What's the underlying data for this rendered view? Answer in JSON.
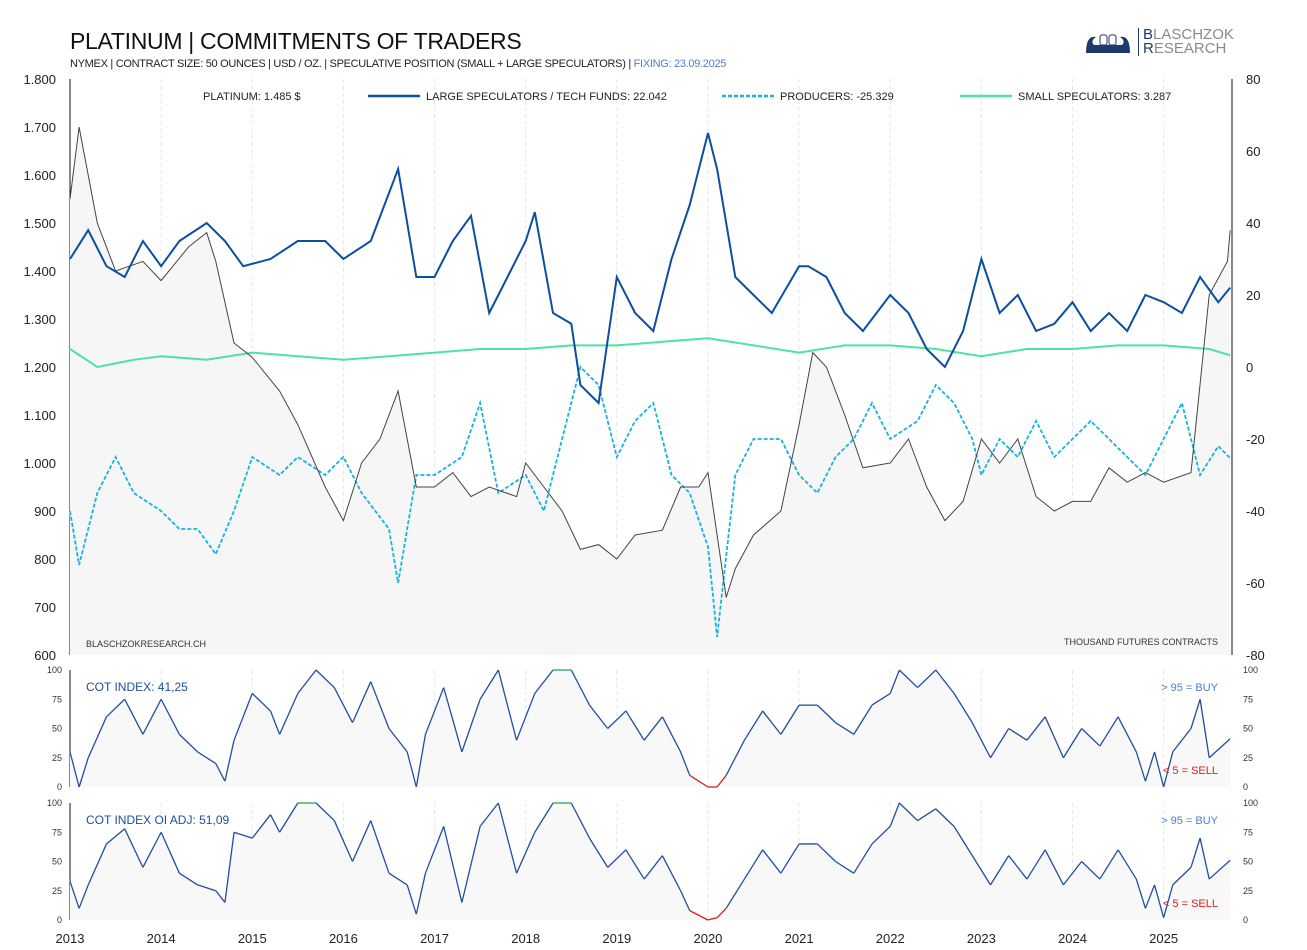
{
  "header": {
    "title": "PLATINUM | COMMITMENTS OF TRADERS",
    "subtitle": "NYMEX | CONTRACT SIZE: 50 OUNCES | USD / OZ. | SPECULATIVE POSITION (SMALL + LARGE SPECULATORS) |",
    "fixing": "FIXING: 23.09.2025",
    "logo": "BLASCHZOK RESEARCH",
    "logo_line1": "LASCHZOK",
    "logo_line2": "ESEARCH",
    "logo_initial1": "B",
    "logo_initial2": "R"
  },
  "colors": {
    "price": "#444444",
    "large": "#0b4ea2",
    "producers": "#16b3e0",
    "small": "#4de3a0",
    "buy": "#1aa64a",
    "sell": "#e01b1b",
    "cot": "#1f4fa0"
  },
  "chart_data": [
    {
      "type": "line",
      "title": "PLATINUM | COMMITMENTS OF TRADERS",
      "left_axis": {
        "label": "USD / OZ.",
        "ylim": [
          600,
          1800
        ],
        "ticks": [
          "600",
          "700",
          "800",
          "900",
          "1.000",
          "1.100",
          "1.200",
          "1.300",
          "1.400",
          "1.500",
          "1.600",
          "1.700",
          "1.800"
        ]
      },
      "right_axis": {
        "label": "THOUSAND  FUTURES CONTRACTS",
        "ylim": [
          -80,
          80
        ],
        "ticks": [
          "-80",
          "-60",
          "-40",
          "-20",
          "0",
          "20",
          "40",
          "60",
          "80"
        ]
      },
      "x_ticks": [
        "2013",
        "2014",
        "2015",
        "2016",
        "2017",
        "2018",
        "2019",
        "2020",
        "2021",
        "2022",
        "2023",
        "2024",
        "2025"
      ],
      "xlim": [
        2013,
        2025.75
      ],
      "legend": [
        "PLATINUM: 1.485 $",
        "LARGE SPECULATORS / TECH FUNDS: 22.042",
        "PRODUCERS: -25.329",
        "SMALL SPECULATORS: 3.287"
      ],
      "legend_position": "top",
      "watermark": "BLASCHZOKRESEARCH.CH",
      "units_note": "THOUSAND  FUTURES CONTRACTS",
      "series": [
        {
          "name": "PLATINUM",
          "axis": "left",
          "x": [
            2013.0,
            2013.1,
            2013.3,
            2013.5,
            2013.8,
            2014.0,
            2014.3,
            2014.5,
            2014.6,
            2014.8,
            2015.0,
            2015.3,
            2015.5,
            2015.8,
            2016.0,
            2016.2,
            2016.4,
            2016.6,
            2016.8,
            2017.0,
            2017.2,
            2017.4,
            2017.6,
            2017.9,
            2018.0,
            2018.2,
            2018.4,
            2018.6,
            2018.8,
            2019.0,
            2019.2,
            2019.5,
            2019.7,
            2019.9,
            2020.0,
            2020.2,
            2020.3,
            2020.5,
            2020.8,
            2021.0,
            2021.15,
            2021.3,
            2021.5,
            2021.7,
            2022.0,
            2022.2,
            2022.4,
            2022.6,
            2022.8,
            2023.0,
            2023.2,
            2023.4,
            2023.6,
            2023.8,
            2024.0,
            2024.2,
            2024.4,
            2024.6,
            2024.8,
            2025.0,
            2025.3,
            2025.5,
            2025.7,
            2025.73
          ],
          "y": [
            1550,
            1700,
            1500,
            1400,
            1420,
            1380,
            1450,
            1480,
            1420,
            1250,
            1220,
            1150,
            1080,
            950,
            880,
            1000,
            1050,
            1150,
            950,
            950,
            980,
            930,
            950,
            930,
            1000,
            950,
            900,
            820,
            830,
            800,
            850,
            860,
            950,
            950,
            980,
            720,
            780,
            850,
            900,
            1080,
            1230,
            1200,
            1100,
            990,
            1000,
            1050,
            950,
            880,
            920,
            1050,
            1000,
            1050,
            930,
            900,
            920,
            920,
            990,
            960,
            980,
            960,
            980,
            1350,
            1420,
            1485
          ]
        },
        {
          "name": "LARGE SPECULATORS / TECH FUNDS",
          "axis": "right",
          "x": [
            2013.0,
            2013.2,
            2013.4,
            2013.6,
            2013.8,
            2014.0,
            2014.2,
            2014.5,
            2014.7,
            2014.9,
            2015.2,
            2015.5,
            2015.8,
            2016.0,
            2016.3,
            2016.6,
            2016.8,
            2017.0,
            2017.2,
            2017.4,
            2017.6,
            2017.8,
            2018.0,
            2018.1,
            2018.3,
            2018.5,
            2018.6,
            2018.8,
            2019.0,
            2019.2,
            2019.4,
            2019.6,
            2019.8,
            2020.0,
            2020.1,
            2020.3,
            2020.5,
            2020.7,
            2021.0,
            2021.1,
            2021.3,
            2021.5,
            2021.7,
            2022.0,
            2022.2,
            2022.4,
            2022.6,
            2022.8,
            2023.0,
            2023.2,
            2023.4,
            2023.6,
            2023.8,
            2024.0,
            2024.2,
            2024.4,
            2024.6,
            2024.8,
            2025.0,
            2025.2,
            2025.4,
            2025.6,
            2025.73
          ],
          "y": [
            30,
            38,
            28,
            25,
            35,
            28,
            35,
            40,
            35,
            28,
            30,
            35,
            35,
            30,
            35,
            55,
            25,
            25,
            35,
            42,
            15,
            25,
            35,
            43,
            15,
            12,
            -5,
            -10,
            25,
            15,
            10,
            30,
            45,
            65,
            55,
            25,
            20,
            15,
            28,
            28,
            25,
            15,
            10,
            20,
            15,
            5,
            0,
            10,
            30,
            15,
            20,
            10,
            12,
            18,
            10,
            15,
            10,
            20,
            18,
            15,
            25,
            18,
            22.042
          ]
        },
        {
          "name": "PRODUCERS",
          "axis": "right",
          "x": [
            2013.0,
            2013.1,
            2013.3,
            2013.5,
            2013.7,
            2014.0,
            2014.2,
            2014.4,
            2014.6,
            2014.8,
            2015.0,
            2015.3,
            2015.5,
            2015.8,
            2016.0,
            2016.2,
            2016.5,
            2016.6,
            2016.8,
            2017.0,
            2017.3,
            2017.5,
            2017.7,
            2018.0,
            2018.2,
            2018.4,
            2018.6,
            2018.8,
            2019.0,
            2019.2,
            2019.4,
            2019.6,
            2019.8,
            2020.0,
            2020.1,
            2020.3,
            2020.5,
            2020.8,
            2021.0,
            2021.2,
            2021.4,
            2021.6,
            2021.8,
            2022.0,
            2022.3,
            2022.5,
            2022.7,
            2022.9,
            2023.0,
            2023.2,
            2023.4,
            2023.6,
            2023.8,
            2024.0,
            2024.2,
            2024.4,
            2024.6,
            2024.8,
            2025.0,
            2025.2,
            2025.4,
            2025.6,
            2025.73
          ],
          "y": [
            -40,
            -55,
            -35,
            -25,
            -35,
            -40,
            -45,
            -45,
            -52,
            -40,
            -25,
            -30,
            -25,
            -30,
            -25,
            -35,
            -45,
            -60,
            -30,
            -30,
            -25,
            -10,
            -35,
            -30,
            -40,
            -20,
            0,
            -5,
            -25,
            -15,
            -10,
            -30,
            -35,
            -50,
            -75,
            -30,
            -20,
            -20,
            -30,
            -35,
            -25,
            -20,
            -10,
            -20,
            -15,
            -5,
            -10,
            -20,
            -30,
            -20,
            -25,
            -15,
            -25,
            -20,
            -15,
            -20,
            -25,
            -30,
            -20,
            -10,
            -30,
            -22,
            -25.329
          ]
        },
        {
          "name": "SMALL SPECULATORS",
          "axis": "right",
          "x": [
            2013.0,
            2013.3,
            2013.7,
            2014.0,
            2014.5,
            2015.0,
            2015.5,
            2016.0,
            2016.5,
            2017.0,
            2017.5,
            2018.0,
            2018.5,
            2019.0,
            2019.5,
            2020.0,
            2020.5,
            2021.0,
            2021.5,
            2022.0,
            2022.5,
            2023.0,
            2023.5,
            2024.0,
            2024.5,
            2025.0,
            2025.5,
            2025.73
          ],
          "y": [
            5,
            0,
            2,
            3,
            2,
            4,
            3,
            2,
            3,
            4,
            5,
            5,
            6,
            6,
            7,
            8,
            6,
            4,
            6,
            6,
            5,
            3,
            5,
            5,
            6,
            6,
            5,
            3.287
          ]
        }
      ]
    },
    {
      "type": "line",
      "title": "COT INDEX: 41,25",
      "ylim": [
        0,
        100
      ],
      "ticks": [
        "0",
        "25",
        "50",
        "75",
        "100"
      ],
      "annotations": [
        "> 95 = BUY",
        "< 5 = SELL"
      ],
      "x": [
        2013.0,
        2013.1,
        2013.2,
        2013.4,
        2013.6,
        2013.8,
        2014.0,
        2014.2,
        2014.4,
        2014.6,
        2014.7,
        2014.8,
        2015.0,
        2015.2,
        2015.3,
        2015.5,
        2015.7,
        2015.9,
        2016.1,
        2016.3,
        2016.5,
        2016.7,
        2016.8,
        2016.9,
        2017.1,
        2017.3,
        2017.5,
        2017.7,
        2017.9,
        2018.1,
        2018.3,
        2018.5,
        2018.7,
        2018.9,
        2019.1,
        2019.3,
        2019.5,
        2019.7,
        2019.8,
        2020.0,
        2020.1,
        2020.2,
        2020.4,
        2020.6,
        2020.8,
        2021.0,
        2021.2,
        2021.4,
        2021.6,
        2021.8,
        2022.0,
        2022.1,
        2022.3,
        2022.5,
        2022.7,
        2022.9,
        2023.1,
        2023.3,
        2023.5,
        2023.7,
        2023.9,
        2024.1,
        2024.3,
        2024.5,
        2024.7,
        2024.8,
        2024.9,
        2025.0,
        2025.1,
        2025.3,
        2025.4,
        2025.5,
        2025.73
      ],
      "y": [
        30,
        0,
        25,
        60,
        75,
        45,
        75,
        45,
        30,
        20,
        5,
        40,
        80,
        65,
        45,
        80,
        100,
        85,
        55,
        90,
        50,
        30,
        0,
        45,
        85,
        30,
        75,
        100,
        40,
        80,
        100,
        100,
        70,
        50,
        65,
        40,
        60,
        30,
        10,
        0,
        0,
        10,
        40,
        65,
        45,
        70,
        70,
        55,
        45,
        70,
        80,
        100,
        85,
        100,
        80,
        55,
        25,
        50,
        40,
        60,
        25,
        50,
        35,
        60,
        30,
        5,
        30,
        0,
        30,
        50,
        75,
        25,
        41.25
      ]
    },
    {
      "type": "line",
      "title": "COT INDEX OI ADJ: 51,09",
      "ylim": [
        0,
        100
      ],
      "ticks": [
        "0",
        "25",
        "50",
        "75",
        "100"
      ],
      "annotations": [
        "> 95 = BUY",
        "< 5 = SELL"
      ],
      "x": [
        2013.0,
        2013.1,
        2013.2,
        2013.4,
        2013.6,
        2013.8,
        2014.0,
        2014.2,
        2014.4,
        2014.6,
        2014.7,
        2014.8,
        2015.0,
        2015.2,
        2015.3,
        2015.5,
        2015.7,
        2015.9,
        2016.1,
        2016.3,
        2016.5,
        2016.7,
        2016.8,
        2016.9,
        2017.1,
        2017.3,
        2017.5,
        2017.7,
        2017.9,
        2018.1,
        2018.3,
        2018.5,
        2018.7,
        2018.9,
        2019.1,
        2019.3,
        2019.5,
        2019.7,
        2019.8,
        2020.0,
        2020.1,
        2020.2,
        2020.4,
        2020.6,
        2020.8,
        2021.0,
        2021.2,
        2021.4,
        2021.6,
        2021.8,
        2022.0,
        2022.1,
        2022.3,
        2022.5,
        2022.7,
        2022.9,
        2023.1,
        2023.3,
        2023.5,
        2023.7,
        2023.9,
        2024.1,
        2024.3,
        2024.5,
        2024.7,
        2024.8,
        2024.9,
        2025.0,
        2025.1,
        2025.3,
        2025.4,
        2025.5,
        2025.73
      ],
      "y": [
        33,
        10,
        30,
        65,
        78,
        45,
        75,
        40,
        30,
        25,
        15,
        75,
        70,
        90,
        75,
        100,
        100,
        85,
        50,
        85,
        40,
        30,
        5,
        40,
        80,
        15,
        80,
        100,
        40,
        75,
        100,
        100,
        70,
        45,
        60,
        35,
        55,
        25,
        8,
        0,
        2,
        10,
        35,
        60,
        40,
        65,
        65,
        50,
        40,
        65,
        80,
        100,
        85,
        95,
        80,
        55,
        30,
        55,
        35,
        60,
        30,
        50,
        35,
        60,
        35,
        10,
        30,
        2,
        30,
        45,
        70,
        35,
        51.09
      ]
    }
  ]
}
